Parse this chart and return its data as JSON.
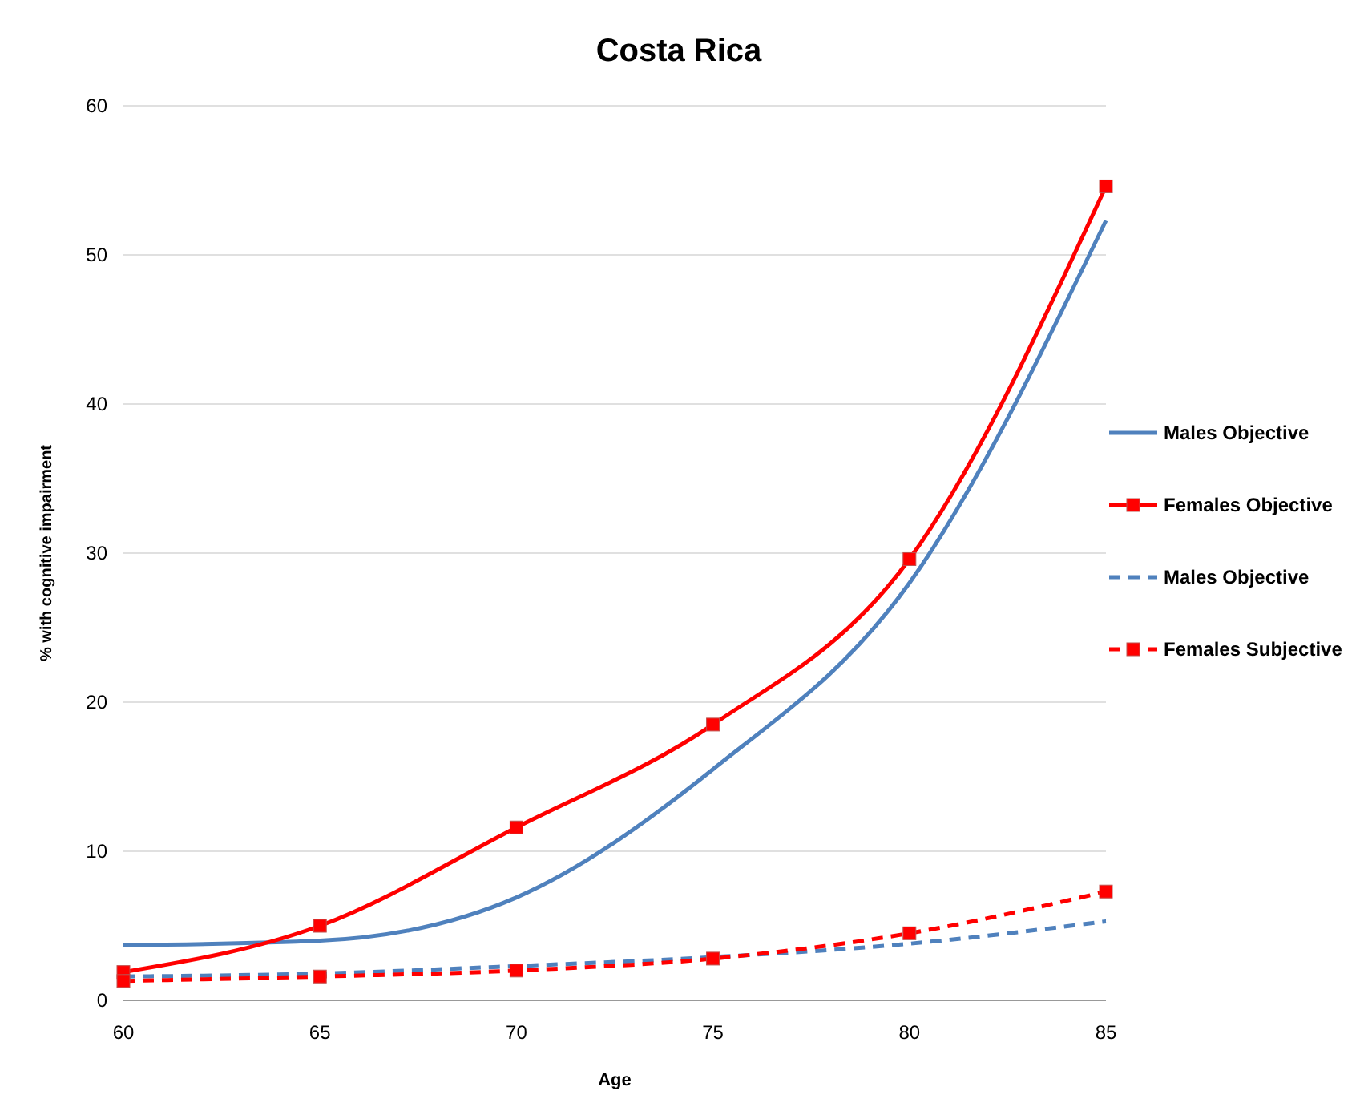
{
  "chart_data": {
    "type": "line",
    "title": "Costa Rica",
    "xlabel": "Age",
    "ylabel": "% with cognitive impairment",
    "x": [
      60,
      65,
      70,
      75,
      80,
      85
    ],
    "xlim": [
      60,
      85
    ],
    "xticks": [
      60,
      65,
      70,
      75,
      80,
      85
    ],
    "ylim": [
      0,
      60
    ],
    "yticks": [
      0,
      10,
      20,
      30,
      40,
      50,
      60
    ],
    "grid": "y",
    "legend": "right",
    "series": [
      {
        "name": "Males Objective",
        "color": "#4f81bd",
        "values": [
          3.7,
          4.0,
          6.9,
          15.5,
          28.0,
          52.3
        ],
        "line_style": "solid",
        "marker": "none"
      },
      {
        "name": "Females Objective",
        "color": "#ff0000",
        "values": [
          1.9,
          5.0,
          11.6,
          18.5,
          29.6,
          54.6
        ],
        "line_style": "solid",
        "marker": "square"
      },
      {
        "name": "Males Objective",
        "color": "#4f81bd",
        "values": [
          1.6,
          1.8,
          2.3,
          2.9,
          3.8,
          5.3
        ],
        "line_style": "dashed",
        "marker": "none"
      },
      {
        "name": "Females Subjective",
        "color": "#ff0000",
        "values": [
          1.3,
          1.6,
          2.0,
          2.8,
          4.5,
          7.3
        ],
        "line_style": "dashed",
        "marker": "square"
      }
    ]
  }
}
